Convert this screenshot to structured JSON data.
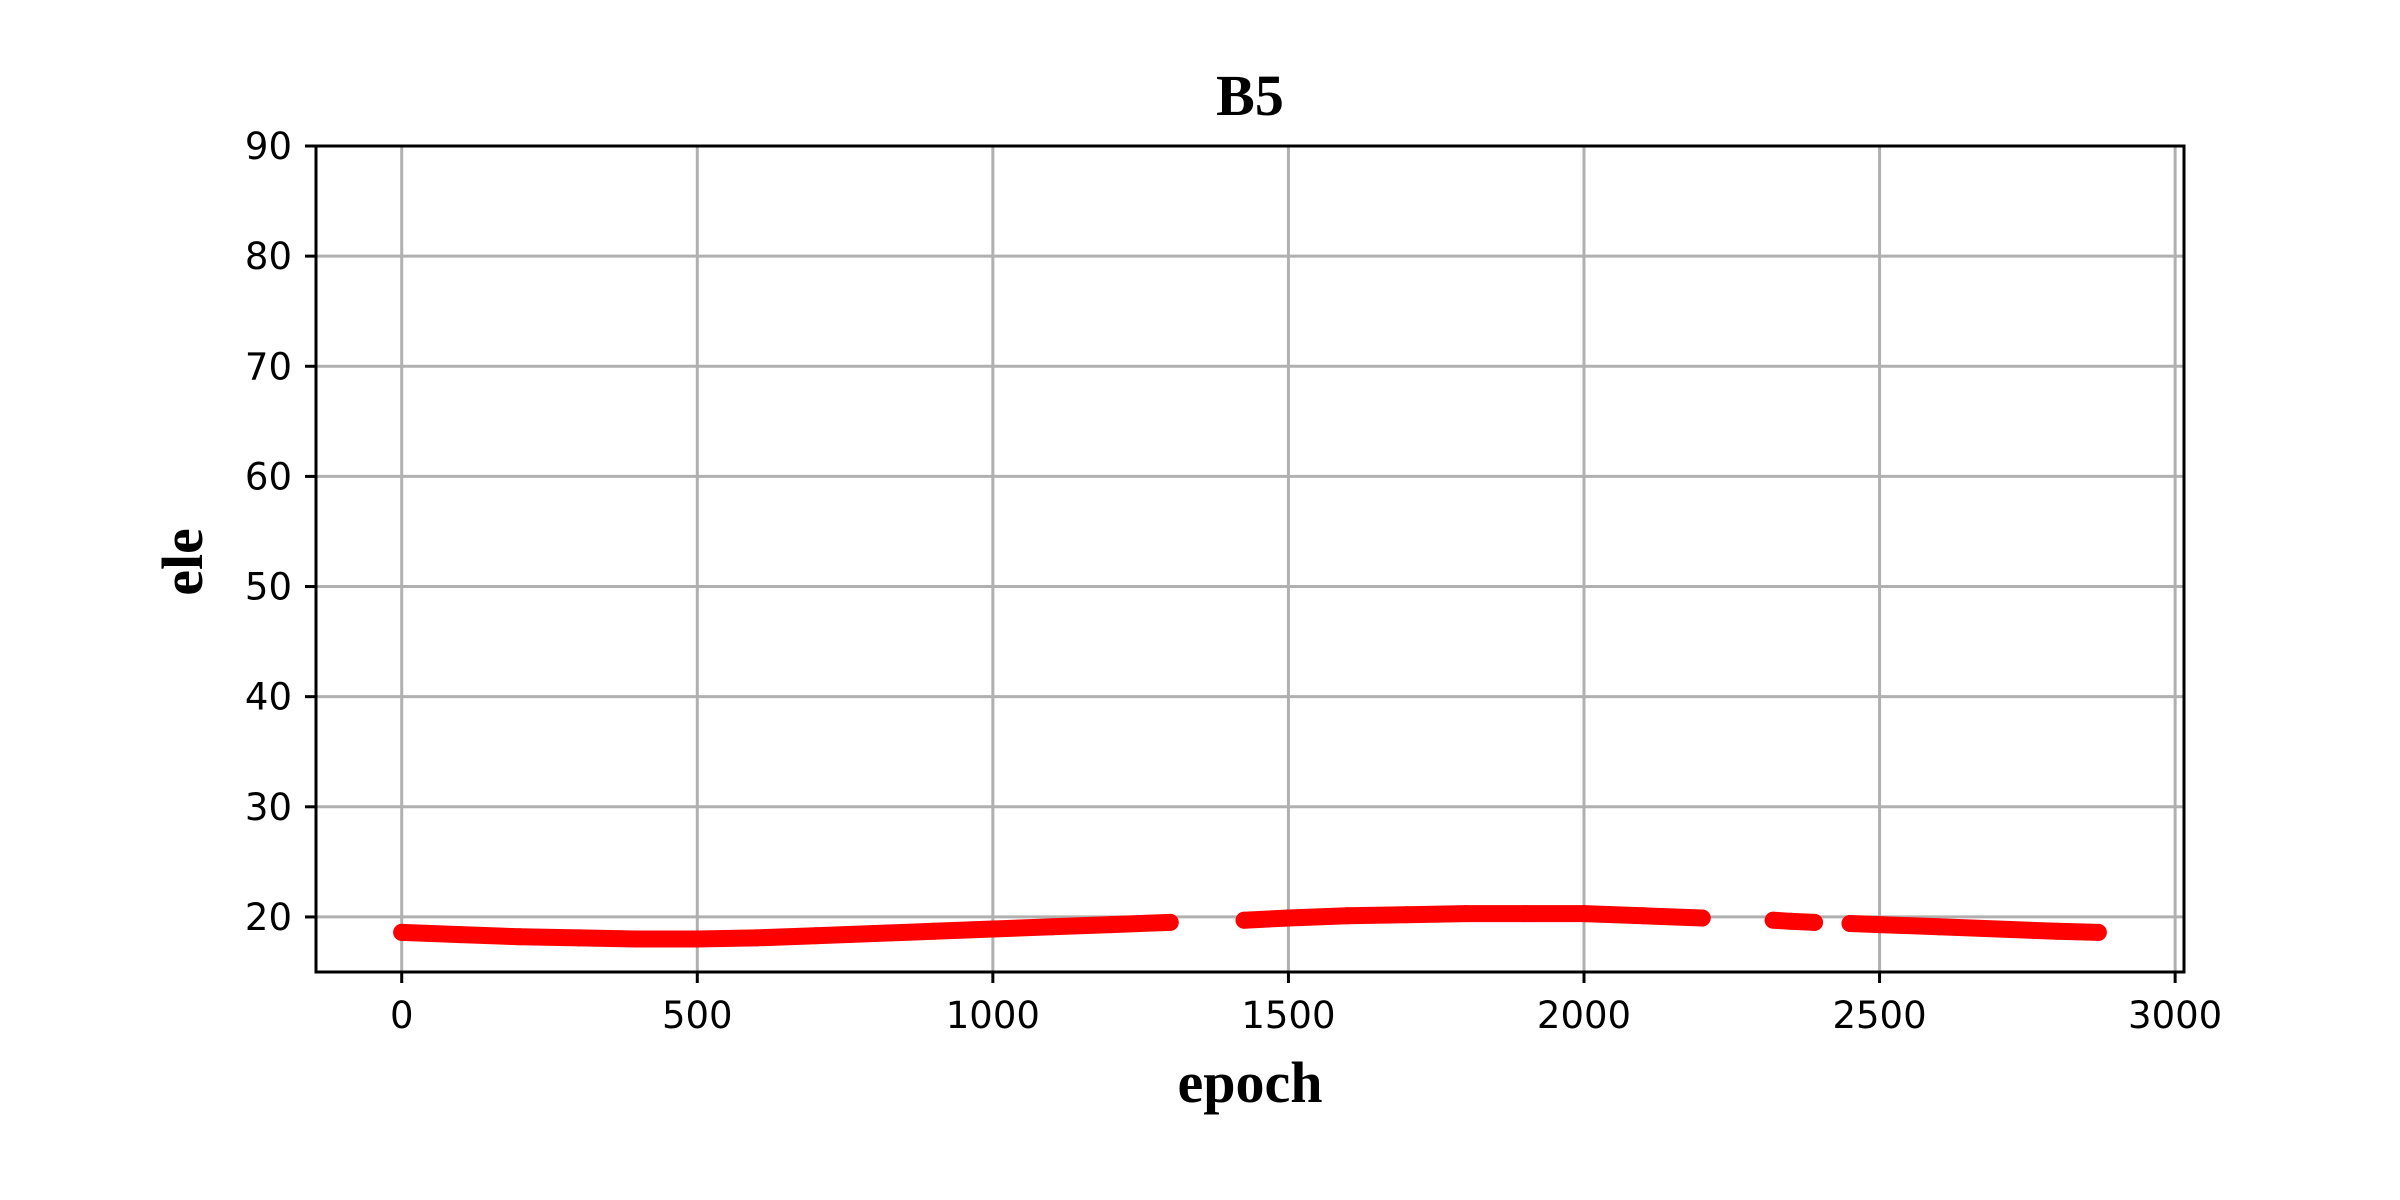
{
  "chart_data": {
    "type": "scatter",
    "title": "B5",
    "xlabel": "epoch",
    "ylabel": "ele",
    "xlim": [
      -145,
      3015
    ],
    "ylim": [
      15,
      90
    ],
    "xticks": [
      0,
      500,
      1000,
      1500,
      2000,
      2500,
      3000
    ],
    "yticks": [
      20,
      30,
      40,
      50,
      60,
      70,
      80,
      90
    ],
    "grid": true,
    "marker_color": "#ff0000",
    "series": [
      {
        "segments": [
          {
            "x": [
              0,
              100,
              200,
              300,
              400,
              500,
              600,
              700,
              800,
              900,
              1000,
              1100,
              1200,
              1300
            ],
            "y": [
              18.6,
              18.4,
              18.2,
              18.1,
              18.0,
              18.0,
              18.1,
              18.3,
              18.5,
              18.7,
              18.9,
              19.1,
              19.3,
              19.5
            ]
          },
          {
            "x": [
              1425,
              1500,
              1600,
              1700,
              1800,
              1900,
              2000,
              2100,
              2200
            ],
            "y": [
              19.7,
              19.9,
              20.1,
              20.2,
              20.3,
              20.3,
              20.3,
              20.1,
              19.9
            ]
          },
          {
            "x": [
              2320,
              2350,
              2390
            ],
            "y": [
              19.7,
              19.6,
              19.5
            ]
          },
          {
            "x": [
              2450,
              2500,
              2600,
              2700,
              2800,
              2870
            ],
            "y": [
              19.4,
              19.3,
              19.1,
              18.9,
              18.7,
              18.6
            ]
          }
        ]
      }
    ]
  }
}
